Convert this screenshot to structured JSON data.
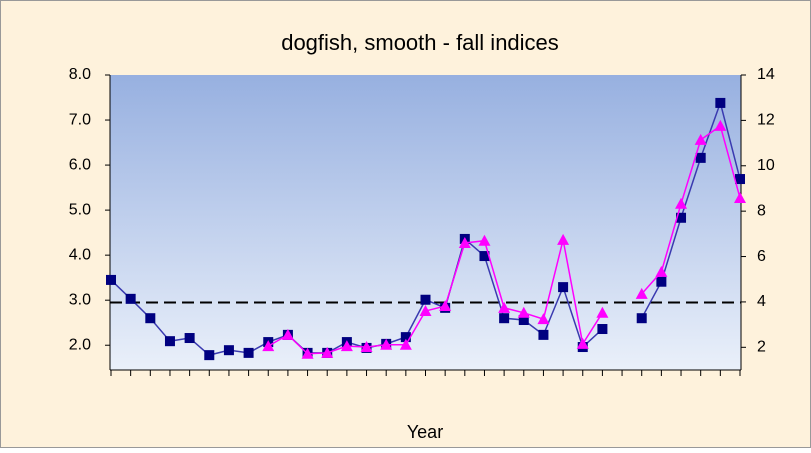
{
  "chart_data": {
    "type": "line",
    "title": "dogfish, smooth - fall indices",
    "x_label": "Year",
    "categories": [
      null,
      null,
      null,
      null,
      null,
      null,
      null,
      null,
      null,
      null,
      null,
      null,
      null,
      null,
      null,
      null,
      null,
      null,
      null,
      null,
      null,
      null,
      null,
      null,
      null,
      null,
      null,
      null,
      null,
      null,
      null,
      null,
      null
    ],
    "series": [
      {
        "color": "#000080",
        "line_color": "#3a3ab0",
        "marker": "square",
        "values": [
          3.45,
          3.03,
          2.6,
          2.09,
          2.16,
          1.78,
          1.89,
          1.83,
          2.07,
          2.23,
          1.83,
          1.83,
          2.07,
          1.94,
          2.03,
          2.18,
          3.01,
          2.83,
          4.36,
          3.98,
          2.6,
          2.56,
          2.23,
          3.29,
          1.96,
          2.36,
          null,
          2.6,
          3.41,
          4.83,
          6.16,
          7.38,
          5.69
        ]
      },
      {
        "color": "#ff00ff",
        "line_color": "#ff00ff",
        "marker": "triangle",
        "values": [
          null,
          null,
          null,
          null,
          null,
          null,
          null,
          null,
          1.98,
          2.23,
          1.81,
          1.83,
          1.98,
          1.96,
          2.01,
          2.01,
          2.76,
          2.87,
          4.27,
          4.32,
          2.83,
          2.72,
          2.58,
          4.34,
          2.03,
          2.72,
          null,
          3.14,
          3.63,
          5.14,
          6.56,
          6.87,
          5.27
        ]
      }
    ],
    "reference_line": 2.95,
    "ylim": [
      1.45,
      8
    ],
    "yticks": [
      {
        "value": 2,
        "label": "2.0"
      },
      {
        "value": 3,
        "label": "3.0"
      },
      {
        "value": 4,
        "label": "4.0"
      },
      {
        "value": 5,
        "label": "5.0"
      },
      {
        "value": 6,
        "label": "6.0"
      },
      {
        "value": 7,
        "label": "7.0"
      },
      {
        "value": 8,
        "label": "8.0"
      }
    ],
    "y2lim": [
      1,
      14
    ],
    "y2ticks": [
      2,
      4,
      6,
      8,
      10,
      12,
      14
    ]
  }
}
